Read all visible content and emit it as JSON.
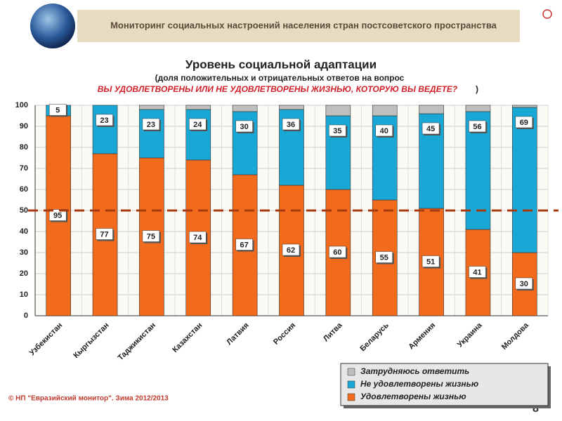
{
  "header": {
    "title": "Мониторинг социальных настроений населения стран постсоветского пространства"
  },
  "chart_data": {
    "type": "stacked_bar",
    "title": "Уровень социальной адаптации",
    "subtitle": "(доля положительных и отрицательных ответов на вопрос",
    "question": "ВЫ УДОВЛЕТВОРЕНЫ ИЛИ НЕ УДОВЛЕТВОРЕНЫ ЖИЗНЬЮ, КОТОРУЮ ВЫ ВЕДЕТЕ?",
    "question_close": ")",
    "categories": [
      "Узбекистан",
      "Кыргызстан",
      "Таджикистан",
      "Казахстан",
      "Латвия",
      "Россия",
      "Литва",
      "Беларусь",
      "Армения",
      "Украина",
      "Молдова"
    ],
    "series": [
      {
        "name": "Удовлетворены жизнью",
        "color": "#f26a1b",
        "values": [
          95,
          77,
          75,
          74,
          67,
          62,
          60,
          55,
          51,
          41,
          30
        ],
        "labels": true
      },
      {
        "name": "Не удовлетворены жизнью",
        "color": "#19a7d6",
        "values": [
          5,
          23,
          23,
          24,
          30,
          36,
          35,
          40,
          45,
          56,
          69
        ],
        "labels": true
      },
      {
        "name": "Затрудняюсь ответить",
        "color": "#bfbfbf",
        "values": [
          0,
          0,
          2,
          2,
          3,
          2,
          5,
          5,
          4,
          3,
          1
        ],
        "labels": false
      }
    ],
    "ylim": [
      0,
      100
    ],
    "yticks": [
      0,
      10,
      20,
      30,
      40,
      50,
      60,
      70,
      80,
      90,
      100
    ],
    "grid": true,
    "reference_line": 50,
    "reference_color": "#a83a10",
    "legend": "bottom-right"
  },
  "footer": {
    "source": "© НП \"Евразийский монитор\". Зима 2012/2013",
    "page": "8"
  }
}
